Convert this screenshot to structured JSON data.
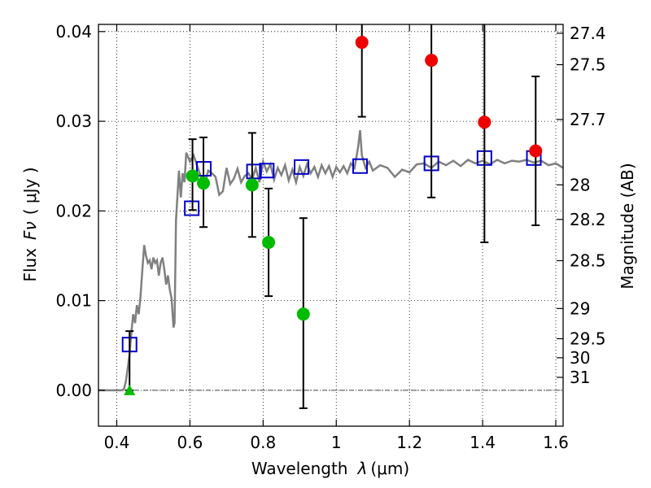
{
  "chart_data": {
    "type": "scatter",
    "title": "",
    "xlabel": "Wavelength",
    "xlabel_symbol": "λ",
    "xlabel_unit": "(μm)",
    "ylabel": "Flux",
    "ylabel_symbol": "Fν",
    "ylabel_unit": "( μJy )",
    "y2label": "Magnitude (AB)",
    "xlim": [
      0.35,
      1.62
    ],
    "ylim": [
      -0.004,
      0.0408
    ],
    "grid": true,
    "x_ticks": [
      {
        "value": 0.4,
        "label": "0.4"
      },
      {
        "value": 0.6,
        "label": "0.6"
      },
      {
        "value": 0.8,
        "label": "0.8"
      },
      {
        "value": 1.0,
        "label": "1"
      },
      {
        "value": 1.2,
        "label": "1.2"
      },
      {
        "value": 1.4,
        "label": "1.4"
      },
      {
        "value": 1.6,
        "label": "1.6"
      }
    ],
    "y_ticks": [
      {
        "value": 0.0,
        "label": "0.00"
      },
      {
        "value": 0.01,
        "label": "0.01"
      },
      {
        "value": 0.02,
        "label": "0.02"
      },
      {
        "value": 0.03,
        "label": "0.03"
      },
      {
        "value": 0.04,
        "label": "0.04"
      }
    ],
    "mag_ticks": [
      {
        "value": 27.4,
        "label": "27.4"
      },
      {
        "value": 27.5,
        "label": "27.5"
      },
      {
        "value": 27.7,
        "label": "27.7"
      },
      {
        "value": 28.0,
        "label": "28"
      },
      {
        "value": 28.2,
        "label": "28.2"
      },
      {
        "value": 28.5,
        "label": "28.5"
      },
      {
        "value": 29.0,
        "label": "29"
      },
      {
        "value": 29.5,
        "label": "29.5"
      },
      {
        "value": 30.0,
        "label": "30"
      },
      {
        "value": 31.0,
        "label": "31"
      }
    ],
    "colors": {
      "model": "#808080",
      "model_points": "#0000cc",
      "green_points": "#00bb00",
      "red_points": "#ee0000",
      "errorbar": "#000000",
      "zero_line": "#444444"
    },
    "model_spectrum": {
      "x": [
        0.35,
        0.4,
        0.415,
        0.42,
        0.425,
        0.43,
        0.435,
        0.44,
        0.445,
        0.45,
        0.455,
        0.46,
        0.465,
        0.47,
        0.475,
        0.48,
        0.485,
        0.49,
        0.495,
        0.5,
        0.505,
        0.51,
        0.515,
        0.52,
        0.525,
        0.53,
        0.535,
        0.54,
        0.545,
        0.55,
        0.555,
        0.558,
        0.562,
        0.57,
        0.575,
        0.58,
        0.585,
        0.59,
        0.6,
        0.61,
        0.62,
        0.63,
        0.64,
        0.65,
        0.66,
        0.67,
        0.68,
        0.69,
        0.7,
        0.71,
        0.72,
        0.73,
        0.74,
        0.75,
        0.76,
        0.77,
        0.78,
        0.79,
        0.8,
        0.81,
        0.82,
        0.83,
        0.84,
        0.85,
        0.86,
        0.87,
        0.88,
        0.89,
        0.9,
        0.91,
        0.92,
        0.93,
        0.94,
        0.95,
        0.96,
        0.97,
        0.98,
        0.99,
        1.0,
        1.01,
        1.02,
        1.03,
        1.04,
        1.05,
        1.06,
        1.065,
        1.07,
        1.08,
        1.09,
        1.1,
        1.12,
        1.14,
        1.16,
        1.18,
        1.2,
        1.22,
        1.24,
        1.26,
        1.28,
        1.3,
        1.32,
        1.34,
        1.36,
        1.38,
        1.4,
        1.42,
        1.44,
        1.46,
        1.48,
        1.5,
        1.52,
        1.54,
        1.56,
        1.58,
        1.6,
        1.62
      ],
      "y": [
        0.0,
        0.0,
        0.0,
        0.0002,
        0.001,
        0.0025,
        0.004,
        0.0065,
        0.0085,
        0.0075,
        0.0095,
        0.0085,
        0.0105,
        0.0135,
        0.0162,
        0.015,
        0.0142,
        0.0145,
        0.0135,
        0.0148,
        0.0142,
        0.0145,
        0.0128,
        0.0142,
        0.0148,
        0.0135,
        0.0118,
        0.0128,
        0.0112,
        0.0102,
        0.007,
        0.0075,
        0.019,
        0.0245,
        0.0215,
        0.0242,
        0.0232,
        0.0265,
        0.0255,
        0.0262,
        0.025,
        0.0238,
        0.0228,
        0.0245,
        0.0242,
        0.0238,
        0.0218,
        0.0222,
        0.0248,
        0.023,
        0.0236,
        0.0247,
        0.0232,
        0.0239,
        0.0242,
        0.0235,
        0.0248,
        0.0232,
        0.0255,
        0.0244,
        0.0252,
        0.0235,
        0.0248,
        0.024,
        0.0251,
        0.0234,
        0.0246,
        0.0232,
        0.0249,
        0.0239,
        0.0252,
        0.0242,
        0.0249,
        0.0238,
        0.0251,
        0.0242,
        0.025,
        0.0238,
        0.0249,
        0.0243,
        0.025,
        0.0242,
        0.0253,
        0.0248,
        0.0272,
        0.029,
        0.0262,
        0.0248,
        0.0255,
        0.0245,
        0.0251,
        0.0248,
        0.0238,
        0.0246,
        0.0243,
        0.0252,
        0.0253,
        0.0248,
        0.0255,
        0.0251,
        0.0256,
        0.025,
        0.0257,
        0.0253,
        0.0256,
        0.0252,
        0.0257,
        0.0253,
        0.0256,
        0.0255,
        0.0257,
        0.0254,
        0.0256,
        0.0251,
        0.0253,
        0.0248
      ]
    },
    "model_points": {
      "x": [
        0.435,
        0.605,
        0.638,
        0.775,
        0.81,
        0.905,
        1.065,
        1.26,
        1.405,
        1.54
      ],
      "y": [
        0.0051,
        0.0203,
        0.0247,
        0.0244,
        0.0245,
        0.0249,
        0.025,
        0.0253,
        0.0259,
        0.0259
      ]
    },
    "green_points": {
      "x": [
        0.435,
        0.607,
        0.637,
        0.77,
        0.815,
        0.91
      ],
      "y": [
        0.0,
        0.0239,
        0.0231,
        0.0229,
        0.0165,
        0.0085
      ],
      "yerr_low": [
        0.0,
        0.0038,
        0.0049,
        0.0058,
        0.006,
        0.0105
      ],
      "yerr_high": [
        0.0066,
        0.0041,
        0.0051,
        0.0058,
        0.006,
        0.0107
      ],
      "upper_limit_index": 0
    },
    "red_points": {
      "x": [
        1.07,
        1.26,
        1.405,
        1.545
      ],
      "y": [
        0.0388,
        0.0368,
        0.0299,
        0.0267
      ],
      "yerr_low": [
        0.0083,
        0.0153,
        0.0134,
        0.0083
      ],
      "yerr_high": [
        0.0083,
        0.0153,
        0.0134,
        0.0083
      ]
    }
  }
}
